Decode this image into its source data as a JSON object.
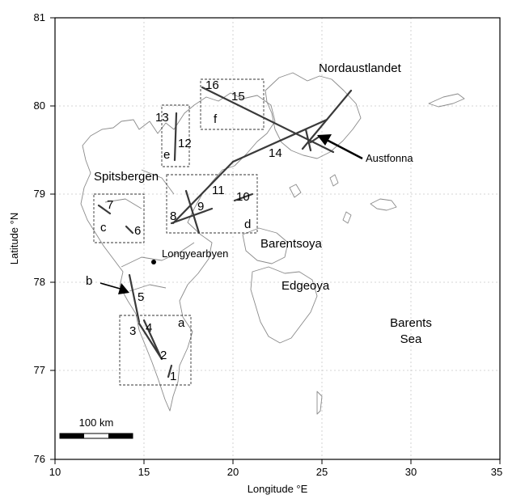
{
  "axes": {
    "xlabel": "Longitude °E",
    "ylabel": "Latitude °N",
    "x_ticks": [
      "10",
      "15",
      "20",
      "25",
      "30",
      "35"
    ],
    "y_ticks": [
      "81",
      "80",
      "79",
      "78",
      "77",
      "76"
    ],
    "x_range": [
      10,
      35
    ],
    "y_range": [
      76,
      81
    ],
    "grid": true
  },
  "places": {
    "nordaustlandet": "Nordaustlandet",
    "spitsbergen": "Spitsbergen",
    "austfonna": "Austfonna",
    "longyearbyen": "Longyearbyen",
    "barentsoya": "Barentsoya",
    "edgeoya": "Edgeoya",
    "barents_line1": "Barents",
    "barents_line2": "Sea"
  },
  "study_areas": [
    "a",
    "b",
    "c",
    "d",
    "e",
    "f"
  ],
  "profile_numbers": [
    "1",
    "2",
    "3",
    "4",
    "5",
    "6",
    "7",
    "8",
    "9",
    "10",
    "11",
    "12",
    "13",
    "14",
    "15",
    "16"
  ],
  "scale_bar": {
    "label": "100 km"
  },
  "colors": {
    "coastline": "#8a8a8a",
    "tracks": "#3a3a3a",
    "grid": "#c8c8c8"
  }
}
